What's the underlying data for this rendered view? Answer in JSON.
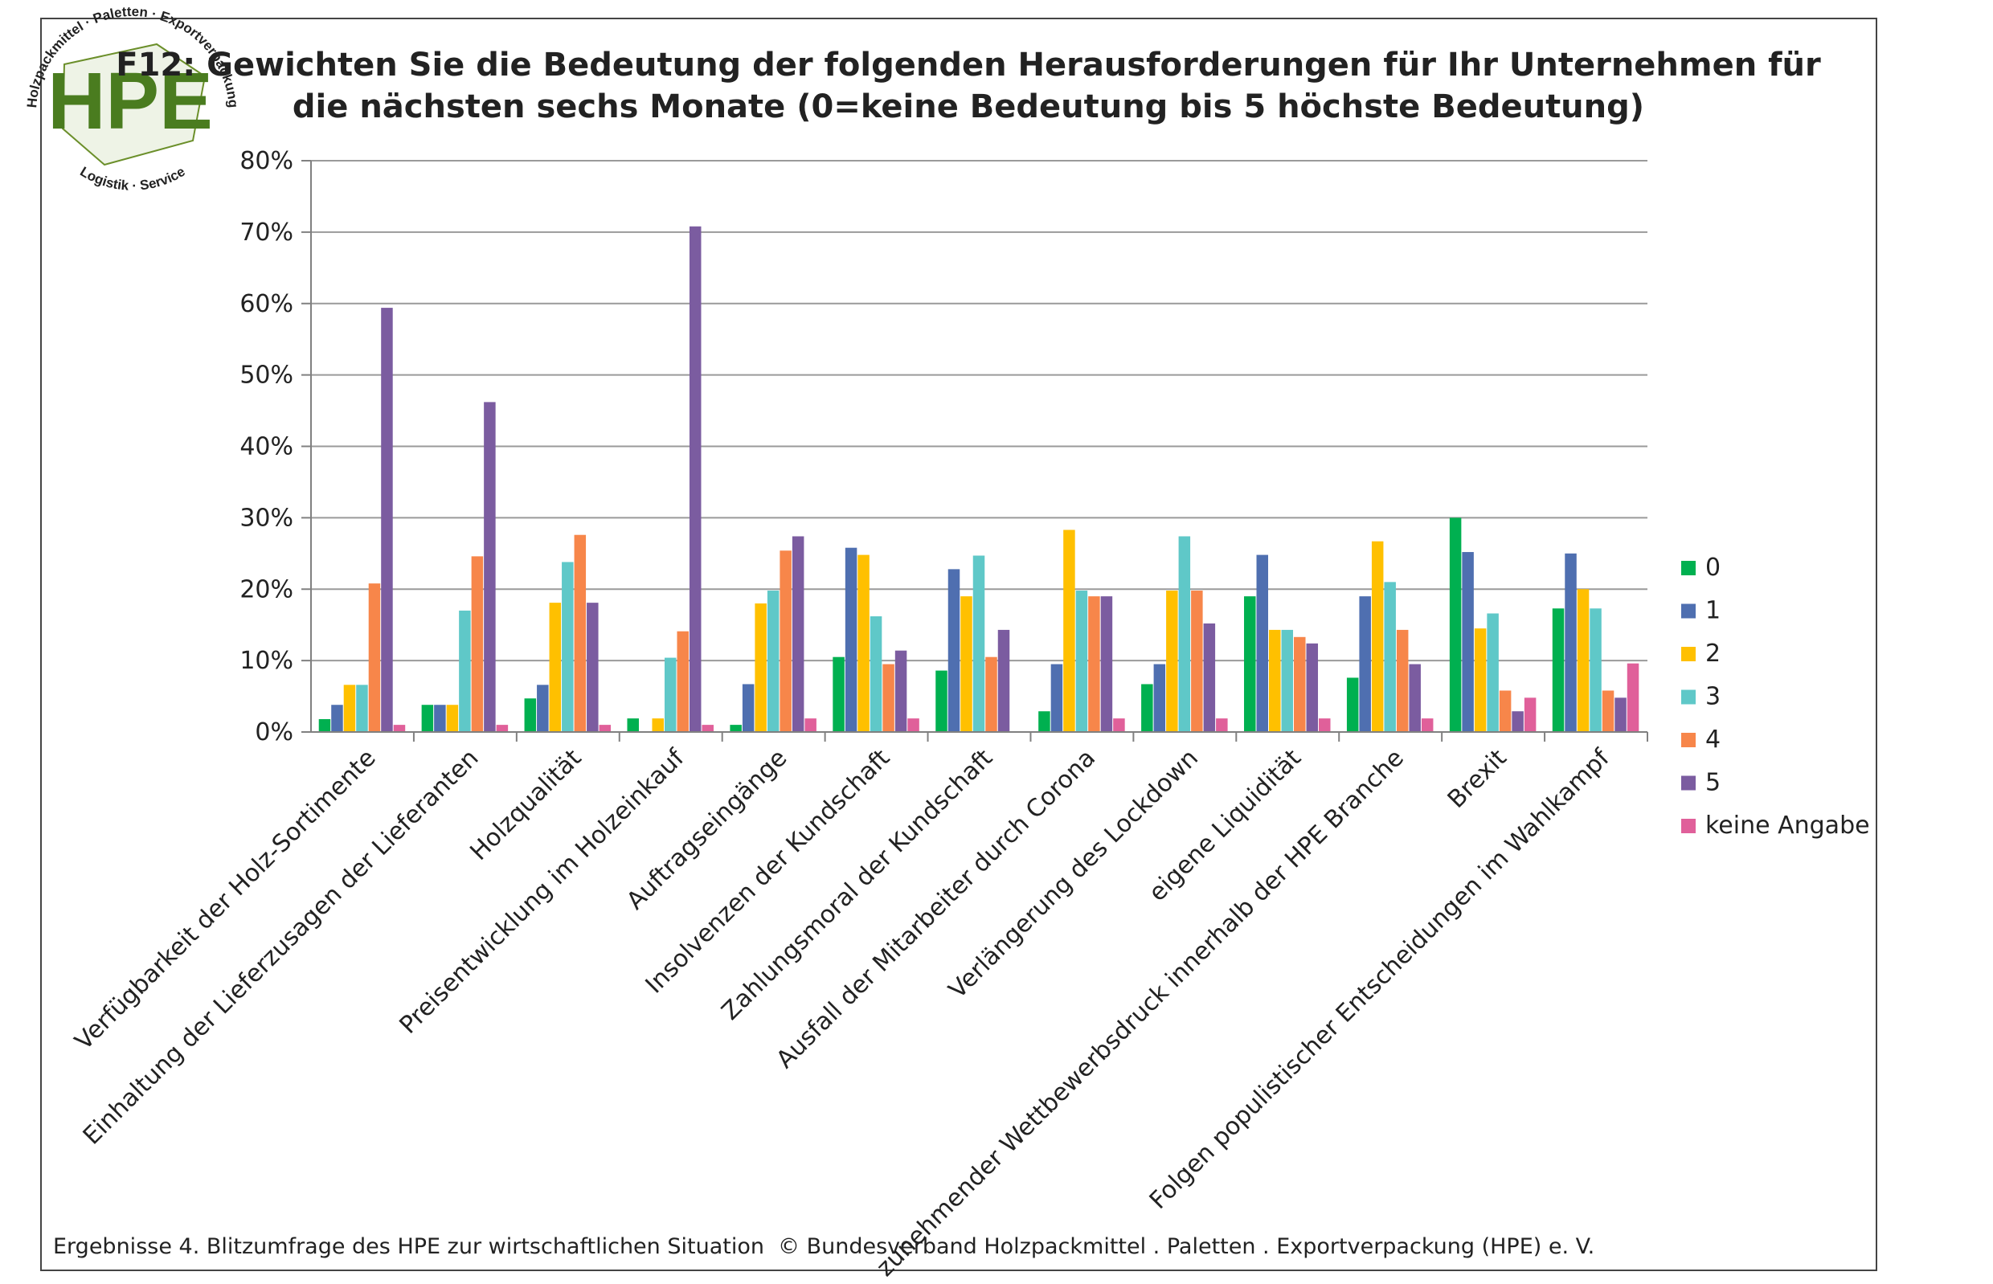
{
  "logo": {
    "text": "HPE",
    "top_arc": "Holzpackmittel · Paletten · Exportverpackung",
    "bottom_arc": "Logistik · Service"
  },
  "footer": {
    "left": "Ergebnisse 4. Blitzumfrage des HPE zur wirtschaftlichen Situation",
    "right": "© Bundesverband Holzpackmittel . Paletten . Exportverpackung (HPE) e. V."
  },
  "chart_data": {
    "type": "bar",
    "title": [
      "F12: Gewichten Sie die Bedeutung der folgenden Herausforderungen für Ihr Unternehmen für",
      "die nächsten sechs Monate (0=keine Bedeutung bis 5 höchste Bedeutung)"
    ],
    "ylim": [
      0,
      80
    ],
    "yticks": [
      0,
      10,
      20,
      30,
      40,
      50,
      60,
      70,
      80
    ],
    "ytick_labels": [
      "0%",
      "10%",
      "20%",
      "30%",
      "40%",
      "50%",
      "60%",
      "70%",
      "80%"
    ],
    "grid": true,
    "legend_position": "right",
    "categories": [
      "Verfügbarkeit der Holz-Sortimente",
      "Einhaltung der Lieferzusagen der Lieferanten",
      "Holzqualität",
      "Preisentwicklung im Holzeinkauf",
      "Auftragseingänge",
      "Insolvenzen der Kundschaft",
      "Zahlungsmoral der Kundschaft",
      "Ausfall der Mitarbeiter durch Corona",
      "Verlängerung des Lockdown",
      "eigene Liquidität",
      "zunehmender Wettbewerbsdruck innerhalb der HPE Branche",
      "Brexit",
      "Folgen populistischer Entscheidungen im Wahlkampf"
    ],
    "series": [
      {
        "name": "0",
        "color": "#00b050",
        "values": [
          1.8,
          3.8,
          4.7,
          1.9,
          1.0,
          10.5,
          8.6,
          2.9,
          6.7,
          19.0,
          7.6,
          30.0,
          17.3
        ]
      },
      {
        "name": "1",
        "color": "#4f6fb0",
        "values": [
          3.8,
          3.8,
          6.6,
          0,
          6.7,
          25.8,
          22.8,
          9.5,
          9.5,
          24.8,
          19.0,
          25.2,
          25.0
        ]
      },
      {
        "name": "2",
        "color": "#ffc000",
        "values": [
          6.6,
          3.8,
          18.1,
          1.9,
          18.0,
          24.8,
          19.0,
          28.3,
          19.8,
          14.3,
          26.7,
          14.5,
          20.0
        ]
      },
      {
        "name": "3",
        "color": "#5fc8c8",
        "values": [
          6.6,
          17.0,
          23.8,
          10.4,
          19.8,
          16.2,
          24.7,
          19.8,
          27.4,
          14.3,
          21.0,
          16.6,
          17.3
        ]
      },
      {
        "name": "4",
        "color": "#f7864a",
        "values": [
          20.8,
          24.6,
          27.6,
          14.1,
          25.4,
          9.5,
          10.5,
          19.0,
          19.8,
          13.3,
          14.3,
          5.8,
          5.8
        ]
      },
      {
        "name": "5",
        "color": "#7b5ca0",
        "values": [
          59.4,
          46.2,
          18.1,
          70.8,
          27.4,
          11.4,
          14.3,
          19.0,
          15.2,
          12.4,
          9.5,
          2.9,
          4.8
        ]
      },
      {
        "name": "keine Angabe",
        "color": "#e0609a",
        "values": [
          1.0,
          1.0,
          1.0,
          1.0,
          1.9,
          1.9,
          0,
          1.9,
          1.9,
          1.9,
          1.9,
          4.8,
          9.6
        ]
      }
    ]
  }
}
